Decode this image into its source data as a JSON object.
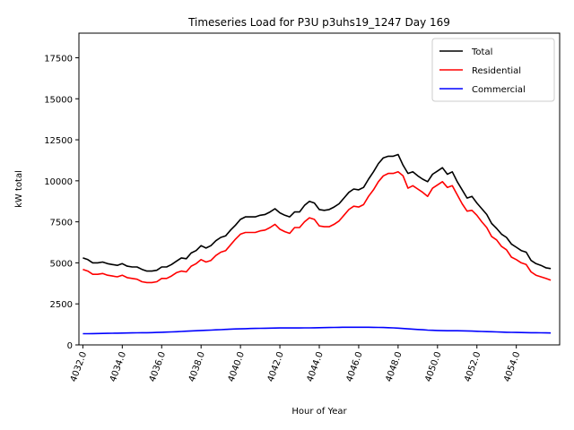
{
  "chart_data": {
    "type": "line",
    "title": "Timeseries Load for P3U p3uhs19_1247  Day 169",
    "xlabel": "Hour of Year",
    "ylabel": "kW total",
    "xlim": [
      4031.8,
      4056.2
    ],
    "ylim": [
      0,
      19000
    ],
    "xticks": [
      4032,
      4034,
      4036,
      4038,
      4040,
      4042,
      4044,
      4046,
      4048,
      4050,
      4052,
      4054
    ],
    "xtick_labels": [
      "4032.0",
      "4034.0",
      "4036.0",
      "4038.0",
      "4040.0",
      "4042.0",
      "4044.0",
      "4046.0",
      "4048.0",
      "4050.0",
      "4052.0",
      "4054.0"
    ],
    "yticks": [
      0,
      2500,
      5000,
      7500,
      10000,
      12500,
      15000,
      17500
    ],
    "ytick_labels": [
      "0",
      "2500",
      "5000",
      "7500",
      "10000",
      "12500",
      "15000",
      "17500"
    ],
    "legend_position": "top-right",
    "x": [
      4032.0,
      4032.25,
      4032.5,
      4032.75,
      4033.0,
      4033.25,
      4033.5,
      4033.75,
      4034.0,
      4034.25,
      4034.5,
      4034.75,
      4035.0,
      4035.25,
      4035.5,
      4035.75,
      4036.0,
      4036.25,
      4036.5,
      4036.75,
      4037.0,
      4037.25,
      4037.5,
      4037.75,
      4038.0,
      4038.25,
      4038.5,
      4038.75,
      4039.0,
      4039.25,
      4039.5,
      4039.75,
      4040.0,
      4040.25,
      4040.5,
      4040.75,
      4041.0,
      4041.25,
      4041.5,
      4041.75,
      4042.0,
      4042.25,
      4042.5,
      4042.75,
      4043.0,
      4043.25,
      4043.5,
      4043.75,
      4044.0,
      4044.25,
      4044.5,
      4044.75,
      4045.0,
      4045.25,
      4045.5,
      4045.75,
      4046.0,
      4046.25,
      4046.5,
      4046.75,
      4047.0,
      4047.25,
      4047.5,
      4047.75,
      4048.0,
      4048.25,
      4048.5,
      4048.75,
      4049.0,
      4049.25,
      4049.5,
      4049.75,
      4050.0,
      4050.25,
      4050.5,
      4050.75,
      4051.0,
      4051.25,
      4051.5,
      4051.75,
      4052.0,
      4052.25,
      4052.5,
      4052.75,
      4053.0,
      4053.25,
      4053.5,
      4053.75,
      4054.0,
      4054.25,
      4054.5,
      4054.75,
      4055.0,
      4055.25,
      4055.5,
      4055.75
    ],
    "series": [
      {
        "name": "Total",
        "color": "#000000",
        "values": [
          5300,
          5200,
          5000,
          5000,
          5050,
          4950,
          4900,
          4850,
          4950,
          4800,
          4750,
          4750,
          4600,
          4500,
          4500,
          4550,
          4750,
          4750,
          4900,
          5100,
          5300,
          5250,
          5600,
          5750,
          6050,
          5900,
          6050,
          6350,
          6550,
          6650,
          7000,
          7300,
          7650,
          7800,
          7800,
          7800,
          7900,
          7950,
          8100,
          8300,
          8050,
          7900,
          7800,
          8100,
          8100,
          8500,
          8750,
          8650,
          8250,
          8200,
          8250,
          8400,
          8600,
          8950,
          9300,
          9500,
          9450,
          9600,
          10100,
          10550,
          11050,
          11400,
          11500,
          11500,
          11600,
          10950,
          10450,
          10550,
          10300,
          10100,
          9950,
          10400,
          10600,
          10800,
          10400,
          10550,
          9950,
          9450,
          8950,
          9050,
          8650,
          8300,
          7950,
          7400,
          7100,
          6750,
          6550,
          6150,
          5950,
          5750,
          5650,
          5150,
          4950,
          4850,
          4700,
          4650
        ]
      },
      {
        "name": "Residential",
        "color": "#ff0000",
        "values": [
          4600,
          4500,
          4300,
          4300,
          4350,
          4250,
          4200,
          4150,
          4250,
          4100,
          4050,
          4000,
          3850,
          3800,
          3800,
          3850,
          4050,
          4050,
          4200,
          4400,
          4500,
          4450,
          4800,
          4950,
          5200,
          5050,
          5150,
          5450,
          5650,
          5750,
          6100,
          6450,
          6750,
          6850,
          6850,
          6850,
          6950,
          7000,
          7150,
          7350,
          7050,
          6900,
          6800,
          7150,
          7150,
          7500,
          7750,
          7650,
          7250,
          7200,
          7200,
          7350,
          7550,
          7900,
          8250,
          8450,
          8400,
          8550,
          9050,
          9450,
          9950,
          10300,
          10450,
          10450,
          10550,
          10300,
          9550,
          9700,
          9500,
          9300,
          9050,
          9550,
          9750,
          9950,
          9600,
          9700,
          9150,
          8600,
          8150,
          8200,
          7900,
          7500,
          7150,
          6600,
          6400,
          6000,
          5800,
          5350,
          5200,
          5000,
          4900,
          4450,
          4250,
          4150,
          4050,
          3950
        ]
      },
      {
        "name": "Commercial",
        "color": "#0000ff",
        "values": [
          680,
          685,
          690,
          695,
          700,
          705,
          710,
          715,
          720,
          725,
          730,
          735,
          740,
          745,
          750,
          760,
          770,
          780,
          790,
          805,
          820,
          835,
          850,
          865,
          880,
          890,
          900,
          915,
          930,
          945,
          960,
          970,
          980,
          990,
          1000,
          1005,
          1010,
          1015,
          1020,
          1025,
          1030,
          1030,
          1030,
          1030,
          1030,
          1035,
          1040,
          1045,
          1050,
          1055,
          1060,
          1065,
          1070,
          1075,
          1075,
          1075,
          1075,
          1075,
          1075,
          1070,
          1065,
          1060,
          1050,
          1040,
          1020,
          1000,
          980,
          960,
          940,
          920,
          900,
          890,
          880,
          870,
          865,
          860,
          860,
          855,
          850,
          840,
          830,
          820,
          810,
          800,
          790,
          780,
          770,
          765,
          760,
          755,
          750,
          745,
          740,
          735,
          730,
          725
        ]
      }
    ]
  }
}
